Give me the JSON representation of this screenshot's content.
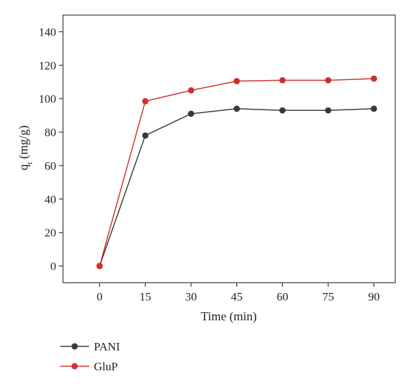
{
  "chart_data": {
    "type": "line",
    "title": "",
    "xlabel": "Time (min)",
    "ylabel_main": "q",
    "ylabel_sub": "t",
    "ylabel_unit": " (mg/g)",
    "x": [
      0,
      15,
      30,
      45,
      60,
      75,
      90
    ],
    "x_ticks": [
      "0",
      "15",
      "30",
      "45",
      "60",
      "75",
      "90"
    ],
    "y_ticks": [
      "0",
      "20",
      "40",
      "60",
      "80",
      "100",
      "120",
      "140"
    ],
    "xlim": [
      -12,
      97
    ],
    "ylim": [
      -10,
      150
    ],
    "grid": false,
    "legend_position": "bottom-left, below the plot",
    "series": [
      {
        "name": "PANI",
        "color": "#3a3a3a",
        "values": [
          0,
          78,
          91,
          94,
          93,
          93,
          94
        ]
      },
      {
        "name": "GluP",
        "color": "#d2302c",
        "values": [
          0,
          98.5,
          105,
          110.5,
          111,
          111,
          112
        ]
      }
    ]
  }
}
